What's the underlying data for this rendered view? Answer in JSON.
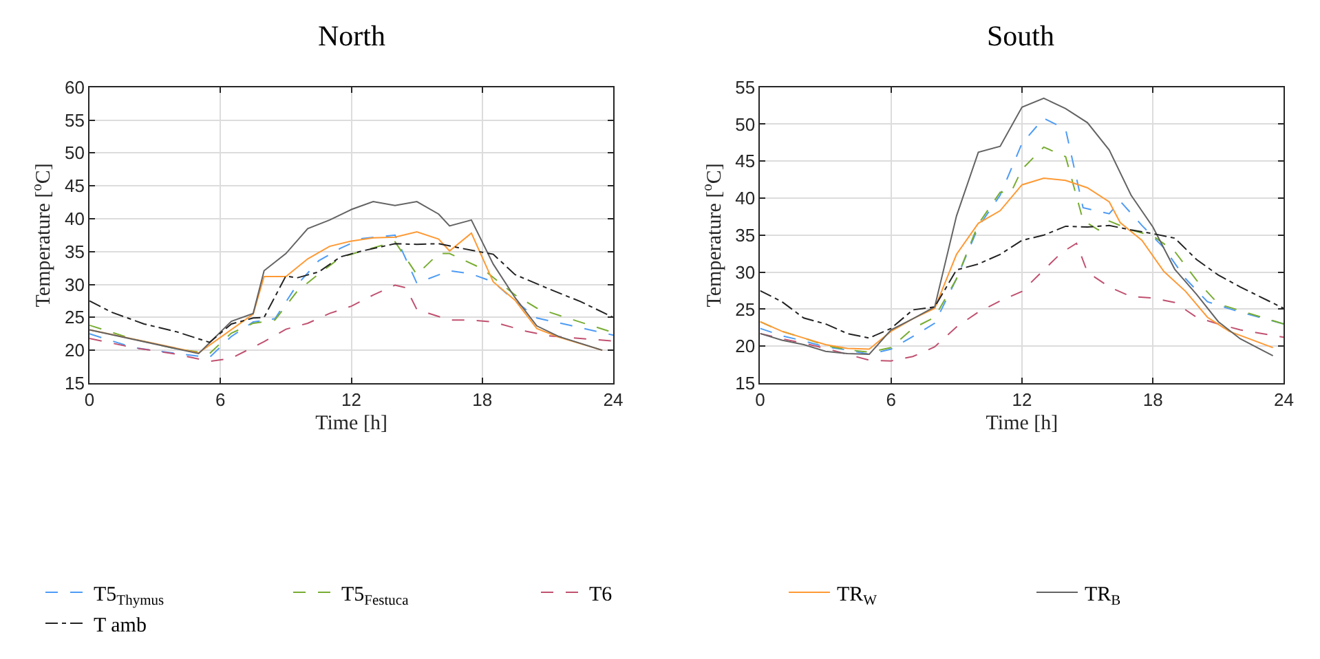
{
  "chart_data": [
    {
      "type": "line",
      "title": "North",
      "xlabel": "Time [h]",
      "ylabel": "Temperature [$^{o}$C]",
      "xlim": [
        0,
        24
      ],
      "xticks": [
        0,
        6,
        12,
        18,
        24
      ],
      "ylim": [
        15,
        60
      ],
      "yticks": [
        15,
        20,
        25,
        30,
        35,
        40,
        45,
        50,
        55,
        60
      ],
      "grid": true,
      "legend": "bottom",
      "series": [
        {
          "name": "T5$_{Thymus}$",
          "color": "#4d9bf5",
          "line_style": "dashed",
          "x": [
            0,
            2,
            4,
            5.5,
            6.5,
            7.5,
            8.5,
            9.5,
            10.5,
            11.5,
            12.5,
            14,
            15,
            16.5,
            17.5,
            18.5,
            19.5,
            20.5,
            22,
            24
          ],
          "values": [
            22.5,
            20.4,
            19.5,
            18.9,
            22.1,
            24.3,
            24.8,
            29.9,
            33.6,
            35.5,
            37.0,
            37.5,
            30.2,
            32.1,
            31.6,
            30.4,
            27.5,
            24.9,
            23.8,
            22.3
          ]
        },
        {
          "name": "T5$_{Festuca}$",
          "color": "#77ac30",
          "line_style": "dashed",
          "x": [
            0,
            2,
            4,
            5.5,
            6.5,
            7.5,
            8.5,
            9.5,
            10.5,
            11.5,
            12.5,
            14,
            15,
            16,
            16.5,
            18,
            19.5,
            20.5,
            22,
            24
          ],
          "values": [
            23.8,
            21.7,
            20.2,
            19.5,
            22.6,
            24.1,
            24.6,
            28.9,
            31.6,
            34.1,
            35.1,
            36.5,
            31.5,
            34.7,
            34.7,
            32.4,
            28.4,
            26.4,
            24.8,
            22.7
          ]
        },
        {
          "name": "T6",
          "color": "#c0506f",
          "line_style": "dashed",
          "x": [
            0,
            2,
            4,
            5.5,
            6.5,
            8,
            9,
            10,
            11,
            12,
            13,
            14,
            14.5,
            15,
            16.5,
            17.5,
            18.5,
            20,
            21,
            24
          ],
          "values": [
            21.8,
            20.4,
            19.4,
            18.3,
            18.8,
            21.3,
            23.2,
            24.1,
            25.6,
            26.7,
            28.4,
            29.9,
            29.5,
            26.2,
            24.6,
            24.6,
            24.3,
            22.9,
            22.2,
            21.4
          ]
        },
        {
          "name": "TR$_{W}$",
          "color": "#ff9933",
          "line_style": "solid",
          "x": [
            0,
            5,
            7.5,
            8,
            9,
            10,
            11,
            12,
            13,
            14,
            15,
            16,
            16.5,
            17.5,
            18.5,
            19.5,
            20.5,
            21.5,
            23.5
          ],
          "values": [
            23.1,
            19.6,
            25.5,
            31.2,
            31.2,
            33.9,
            35.8,
            36.6,
            37.1,
            37.2,
            38.0,
            36.9,
            35.1,
            37.8,
            30.4,
            27.6,
            23.3,
            22.0,
            20.0
          ]
        },
        {
          "name": "TR$_{B}$",
          "color": "#636363",
          "line_style": "solid",
          "x": [
            0,
            5,
            6.5,
            7.5,
            8,
            9,
            10,
            11,
            12,
            13,
            14,
            15,
            16,
            16.5,
            17.5,
            18.5,
            19.5,
            20.5,
            21.5,
            23.5
          ],
          "values": [
            23.1,
            19.5,
            24.4,
            25.6,
            32.1,
            34.7,
            38.5,
            39.8,
            41.4,
            42.6,
            42.0,
            42.6,
            40.7,
            38.9,
            39.8,
            33.1,
            28.0,
            23.7,
            22.1,
            20.0
          ]
        },
        {
          "name": "T amb",
          "color": "#222222",
          "line_style": "dashdot",
          "x": [
            0,
            1,
            2.5,
            4,
            5.5,
            6.5,
            7.5,
            8,
            9,
            9.5,
            10.5,
            11.5,
            12.5,
            14,
            15,
            16,
            17.5,
            18.5,
            19.5,
            21,
            22.5,
            24
          ],
          "values": [
            27.5,
            25.8,
            24.0,
            22.8,
            21.2,
            24.0,
            24.9,
            25.0,
            31.3,
            31.0,
            31.9,
            34.2,
            35.1,
            36.2,
            36.1,
            36.2,
            35.2,
            34.6,
            31.5,
            29.4,
            27.4,
            25.0
          ]
        }
      ]
    },
    {
      "type": "line",
      "title": "South",
      "xlabel": "Time [h]",
      "ylabel": "Temperature [$^{o}$C]",
      "xlim": [
        0,
        24
      ],
      "xticks": [
        0,
        6,
        12,
        18,
        24
      ],
      "ylim": [
        15,
        55
      ],
      "yticks": [
        15,
        20,
        25,
        30,
        35,
        40,
        45,
        50,
        55
      ],
      "grid": true,
      "legend": "bottom",
      "series": [
        {
          "name": "T5$_{Thymus}$",
          "color": "#4d9bf5",
          "line_style": "dashed",
          "x": [
            0,
            1,
            2,
            3,
            4,
            5,
            6,
            7,
            8,
            9,
            10,
            11,
            12,
            13,
            14,
            14.8,
            16,
            16.5,
            17.5,
            18.5,
            19.5,
            20.5,
            22,
            24
          ],
          "values": [
            22.4,
            21.4,
            20.7,
            19.9,
            19.5,
            18.9,
            19.6,
            21.3,
            23.1,
            29.1,
            36.1,
            40.4,
            47.4,
            50.8,
            49.3,
            38.7,
            37.9,
            39.6,
            36.3,
            33.3,
            29.1,
            26.0,
            24.6,
            23.0
          ]
        },
        {
          "name": "T5$_{Festuca}$",
          "color": "#77ac30",
          "line_style": "dashed",
          "x": [
            0,
            1,
            2,
            3,
            4,
            5,
            6,
            7,
            8,
            9,
            10,
            11,
            11.5,
            12,
            13,
            14,
            14.8,
            15.5,
            16,
            17,
            18,
            19,
            20,
            21,
            22,
            24
          ],
          "values": [
            23.3,
            22.0,
            21.1,
            20.1,
            19.5,
            19.2,
            19.8,
            22.4,
            23.9,
            29.1,
            36.5,
            40.8,
            40.8,
            43.9,
            46.9,
            45.6,
            37.0,
            35.7,
            36.9,
            35.7,
            34.9,
            32.8,
            28.9,
            25.7,
            24.8,
            23.0
          ]
        },
        {
          "name": "T6",
          "color": "#c0506f",
          "line_style": "dashed",
          "x": [
            0,
            1,
            2,
            3,
            4,
            5,
            6,
            7,
            8,
            9,
            10,
            11,
            12,
            13,
            13.8,
            14.5,
            15,
            16,
            17,
            18,
            19,
            20,
            21,
            22,
            24
          ],
          "values": [
            21.7,
            21.0,
            20.4,
            19.7,
            18.9,
            18.1,
            18.0,
            18.6,
            19.9,
            22.6,
            24.6,
            26.1,
            27.4,
            30.3,
            32.6,
            33.9,
            30.0,
            28.0,
            26.7,
            26.5,
            25.9,
            23.9,
            23.0,
            22.2,
            21.2
          ]
        },
        {
          "name": "TR$_{W}$",
          "color": "#ff9933",
          "line_style": "solid",
          "x": [
            0,
            1,
            2,
            3,
            4,
            5,
            6,
            7,
            8,
            9,
            10,
            11,
            12,
            13,
            14,
            15,
            16,
            16.5,
            17.5,
            18.5,
            19.5,
            20.5,
            21.5,
            23.5
          ],
          "values": [
            23.3,
            22.0,
            21.1,
            20.2,
            19.7,
            19.6,
            22.0,
            23.7,
            25.1,
            32.4,
            36.6,
            38.3,
            41.8,
            42.7,
            42.4,
            41.4,
            39.5,
            36.7,
            34.3,
            30.1,
            27.4,
            23.9,
            22.0,
            19.8
          ]
        },
        {
          "name": "TR$_{B}$",
          "color": "#636363",
          "line_style": "solid",
          "x": [
            0,
            1,
            2,
            3,
            4,
            5,
            6,
            7,
            8,
            9,
            10,
            11,
            12,
            13,
            14,
            15,
            16,
            17,
            18,
            19,
            20,
            21,
            22,
            23.5
          ],
          "values": [
            21.7,
            20.8,
            20.2,
            19.3,
            19.0,
            18.9,
            22.2,
            23.7,
            25.3,
            37.6,
            46.2,
            47.0,
            52.3,
            53.5,
            52.1,
            50.2,
            46.5,
            40.4,
            36.1,
            30.4,
            27.0,
            23.3,
            21.0,
            18.7
          ]
        },
        {
          "name": "T amb",
          "color": "#222222",
          "line_style": "dashdot",
          "x": [
            0,
            1,
            2,
            3,
            4,
            5,
            6,
            7,
            8,
            9,
            10,
            11,
            12,
            13,
            14,
            15,
            16,
            17,
            18,
            19,
            20,
            21,
            22,
            24
          ],
          "values": [
            27.5,
            26.0,
            23.8,
            23.0,
            21.7,
            21.1,
            22.4,
            24.9,
            25.3,
            30.3,
            31.1,
            32.4,
            34.3,
            35.0,
            36.2,
            36.1,
            36.3,
            35.7,
            35.2,
            34.6,
            31.7,
            29.6,
            28.0,
            25.1
          ]
        }
      ]
    }
  ]
}
